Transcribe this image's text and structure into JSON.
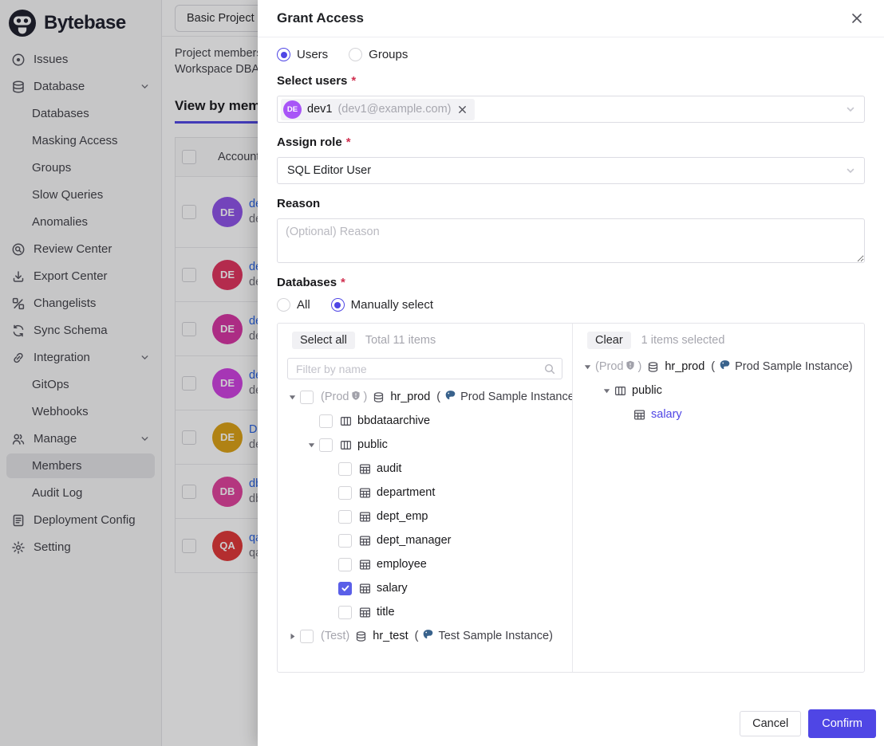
{
  "app": {
    "brand": "Bytebase",
    "sidebar": {
      "items": [
        {
          "label": "Issues",
          "icon": "issues-icon",
          "indent": 0
        },
        {
          "label": "Database",
          "icon": "database-icon",
          "indent": 0,
          "chevron": true
        },
        {
          "label": "Databases",
          "indent": 1
        },
        {
          "label": "Masking Access",
          "indent": 1
        },
        {
          "label": "Groups",
          "indent": 1
        },
        {
          "label": "Slow Queries",
          "indent": 1
        },
        {
          "label": "Anomalies",
          "indent": 1
        },
        {
          "label": "Review Center",
          "icon": "review-center-icon",
          "indent": 0
        },
        {
          "label": "Export Center",
          "icon": "export-center-icon",
          "indent": 0
        },
        {
          "label": "Changelists",
          "icon": "changelists-icon",
          "indent": 0
        },
        {
          "label": "Sync Schema",
          "icon": "sync-schema-icon",
          "indent": 0
        },
        {
          "label": "Integration",
          "icon": "integration-icon",
          "indent": 0,
          "chevron": true
        },
        {
          "label": "GitOps",
          "indent": 1
        },
        {
          "label": "Webhooks",
          "indent": 1
        },
        {
          "label": "Manage",
          "icon": "manage-icon",
          "indent": 0,
          "chevron": true
        },
        {
          "label": "Members",
          "indent": 1,
          "active": true
        },
        {
          "label": "Audit Log",
          "indent": 1
        },
        {
          "label": "Deployment Config",
          "icon": "deployment-config-icon",
          "indent": 0
        },
        {
          "label": "Setting",
          "icon": "setting-icon",
          "indent": 0
        }
      ]
    },
    "content": {
      "project_tab": "Basic Project",
      "description_line1": "Project members",
      "description_line2": "Workspace DBA",
      "view_tab": "View by members",
      "table": {
        "account_header": "Account",
        "rows": [
          {
            "avatar_initials": "DE",
            "avatar_color": "#8d51e8",
            "name_fragment": "de",
            "sub_fragment": "de"
          },
          {
            "avatar_initials": "DE",
            "avatar_color": "#e0315b",
            "name_fragment": "de",
            "sub_fragment": "de"
          },
          {
            "avatar_initials": "DE",
            "avatar_color": "#d633a2",
            "name_fragment": "de",
            "sub_fragment": "de"
          },
          {
            "avatar_initials": "DE",
            "avatar_color": "#cf3fe0",
            "name_fragment": "de",
            "sub_fragment": "de"
          },
          {
            "avatar_initials": "DE",
            "avatar_color": "#dba112",
            "name_fragment": "De",
            "sub_fragment": "de"
          },
          {
            "avatar_initials": "DB",
            "avatar_color": "#e0419c",
            "name_fragment": "db",
            "sub_fragment": "db"
          },
          {
            "avatar_initials": "QA",
            "avatar_color": "#e03535",
            "name_fragment": "qa",
            "sub_fragment": "qa"
          }
        ]
      }
    }
  },
  "modal": {
    "title": "Grant Access",
    "required_marker": "*",
    "accent_color": "#4f46e5",
    "postgres_blue": "#39628c",
    "target_radio": [
      {
        "label": "Users",
        "selected": true
      },
      {
        "label": "Groups",
        "selected": false
      }
    ],
    "select_users": {
      "label": "Select users",
      "chip": {
        "avatar_initials": "DE",
        "avatar_color": "#a855f7",
        "name": "dev1",
        "email": "(dev1@example.com)"
      }
    },
    "assign_role": {
      "label": "Assign role",
      "value": "SQL Editor User"
    },
    "reason": {
      "label": "Reason",
      "placeholder": "(Optional) Reason"
    },
    "databases": {
      "label": "Databases",
      "mode_radio": [
        {
          "label": "All",
          "selected": false
        },
        {
          "label": "Manually select",
          "selected": true
        }
      ]
    },
    "picker": {
      "select_all_label": "Select all",
      "total_label": "Total 11 items",
      "clear_label": "Clear",
      "selected_label": "1 items selected",
      "filter_placeholder": "Filter by name",
      "left_tree": [
        {
          "depth": 0,
          "caret": "down",
          "checkbox": "unchecked",
          "env": "Prod",
          "env_shield": true,
          "icon": "database",
          "name": "hr_prod",
          "instance": "Prod Sample Instance"
        },
        {
          "depth": 1,
          "caret": null,
          "checkbox": "unchecked",
          "icon": "schema",
          "name": "bbdataarchive"
        },
        {
          "depth": 1,
          "caret": "down",
          "checkbox": "unchecked",
          "icon": "schema",
          "name": "public"
        },
        {
          "depth": 2,
          "caret": null,
          "checkbox": "unchecked",
          "icon": "table",
          "name": "audit"
        },
        {
          "depth": 2,
          "caret": null,
          "checkbox": "unchecked",
          "icon": "table",
          "name": "department"
        },
        {
          "depth": 2,
          "caret": null,
          "checkbox": "unchecked",
          "icon": "table",
          "name": "dept_emp"
        },
        {
          "depth": 2,
          "caret": null,
          "checkbox": "unchecked",
          "icon": "table",
          "name": "dept_manager"
        },
        {
          "depth": 2,
          "caret": null,
          "checkbox": "unchecked",
          "icon": "table",
          "name": "employee"
        },
        {
          "depth": 2,
          "caret": null,
          "checkbox": "checked",
          "icon": "table",
          "name": "salary"
        },
        {
          "depth": 2,
          "caret": null,
          "checkbox": "unchecked",
          "icon": "table",
          "name": "title"
        },
        {
          "depth": 0,
          "caret": "right",
          "checkbox": "unchecked",
          "env": "Test",
          "env_shield": false,
          "icon": "database",
          "name": "hr_test",
          "instance": "Test Sample Instance"
        }
      ],
      "right_tree": [
        {
          "depth": 0,
          "caret": "down",
          "env": "Prod",
          "env_shield": true,
          "icon": "database",
          "name": "hr_prod",
          "instance": "Prod Sample Instance"
        },
        {
          "depth": 1,
          "caret": "down",
          "icon": "schema",
          "name": "public"
        },
        {
          "depth": 2,
          "caret": null,
          "icon": "table",
          "name": "salary",
          "selected": true
        }
      ]
    },
    "footer": {
      "cancel_label": "Cancel",
      "confirm_label": "Confirm"
    }
  }
}
